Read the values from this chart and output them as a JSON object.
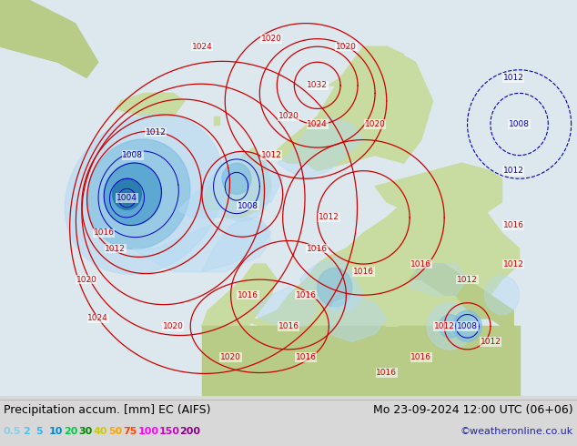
{
  "title_left": "Precipitation accum. [mm] EC (AIFS)",
  "title_right": "Mo 23-09-2024 12:00 UTC (06+06)",
  "credit": "©weatheronline.co.uk",
  "legend_values": [
    "0.5",
    "2",
    "5",
    "10",
    "20",
    "30",
    "40",
    "50",
    "75",
    "100",
    "150",
    "200"
  ],
  "legend_colors": {
    "0.5": "#87CEEB",
    "2": "#4FC3F7",
    "5": "#29B6F6",
    "10": "#0288D1",
    "20": "#00CC44",
    "30": "#008800",
    "40": "#CCCC00",
    "50": "#FFA500",
    "75": "#FF4500",
    "100": "#FF00FF",
    "150": "#CC00CC",
    "200": "#880088"
  },
  "ocean_color": "#dde8ee",
  "land_color": "#c8dba0",
  "land_color2": "#b8cc88",
  "sea_inner_color": "#cce0ea",
  "precip_light": "#b3d9f5",
  "precip_mid": "#7bbde0",
  "precip_dark": "#4499cc",
  "precip_vdark": "#2277aa",
  "footer_bg": "#d8d8d8",
  "red": "#cc0000",
  "blue": "#0000bb",
  "title_fontsize": 9,
  "legend_fontsize": 8,
  "credit_fontsize": 8
}
